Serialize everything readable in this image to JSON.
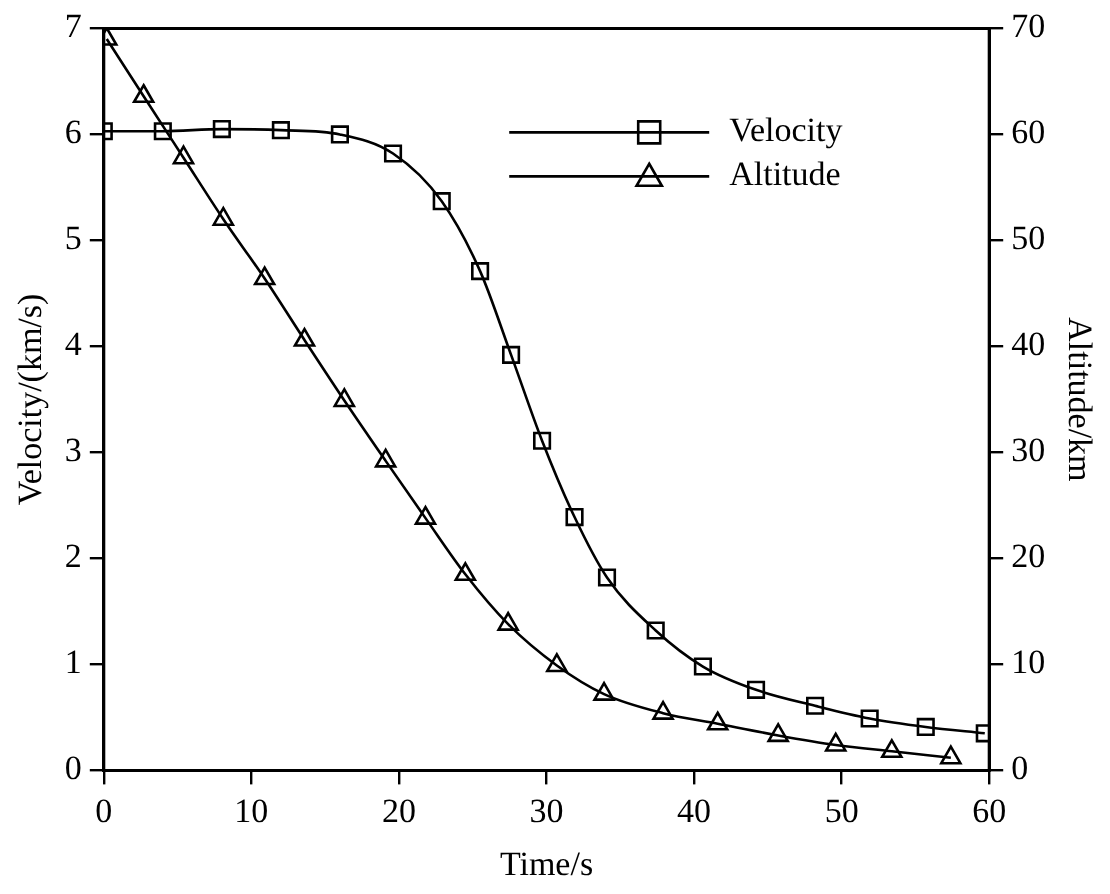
{
  "chart_data": {
    "type": "line",
    "xlabel": "Time/s",
    "ylabel": "Velocity/(km/s)",
    "y2label": "Altitude/km",
    "xlim": [
      0,
      60
    ],
    "xticks": [
      0,
      10,
      20,
      30,
      40,
      50,
      60
    ],
    "ylim": [
      0,
      7
    ],
    "yticks": [
      0,
      1,
      2,
      3,
      4,
      5,
      6,
      7
    ],
    "y2lim": [
      0,
      70
    ],
    "y2ticks": [
      0,
      10,
      20,
      30,
      40,
      50,
      60,
      70
    ],
    "grid": false,
    "legend": "top right",
    "line_style": "solid",
    "series": [
      {
        "name": "Velocity",
        "color": "#000000",
        "marker": "square",
        "x": [
          0,
          4,
          8,
          12,
          16,
          19.6,
          22.9,
          25.5,
          27.6,
          29.7,
          31.9,
          34.1,
          37.4,
          40.6,
          44.2,
          48.2,
          51.9,
          55.7,
          59.7
        ],
        "values": [
          6.03,
          6.03,
          6.05,
          6.04,
          6.0,
          5.82,
          5.37,
          4.71,
          3.92,
          3.11,
          2.39,
          1.82,
          1.32,
          0.98,
          0.76,
          0.61,
          0.49,
          0.41,
          0.35
        ]
      },
      {
        "name": "Altitude",
        "color": "#000000",
        "marker": "triangle",
        "axis": "y2",
        "x": [
          0.2,
          2.7,
          5.4,
          8.1,
          10.9,
          13.6,
          16.3,
          19.1,
          21.8,
          24.5,
          27.4,
          30.7,
          33.9,
          37.9,
          41.6,
          45.7,
          49.6,
          53.4,
          57.4
        ],
        "values": [
          69,
          63.6,
          57.8,
          52,
          46.4,
          40.6,
          34.9,
          29.2,
          23.8,
          18.5,
          13.8,
          9.9,
          7.2,
          5.4,
          4.4,
          3.3,
          2.4,
          1.8,
          1.2
        ]
      }
    ]
  }
}
